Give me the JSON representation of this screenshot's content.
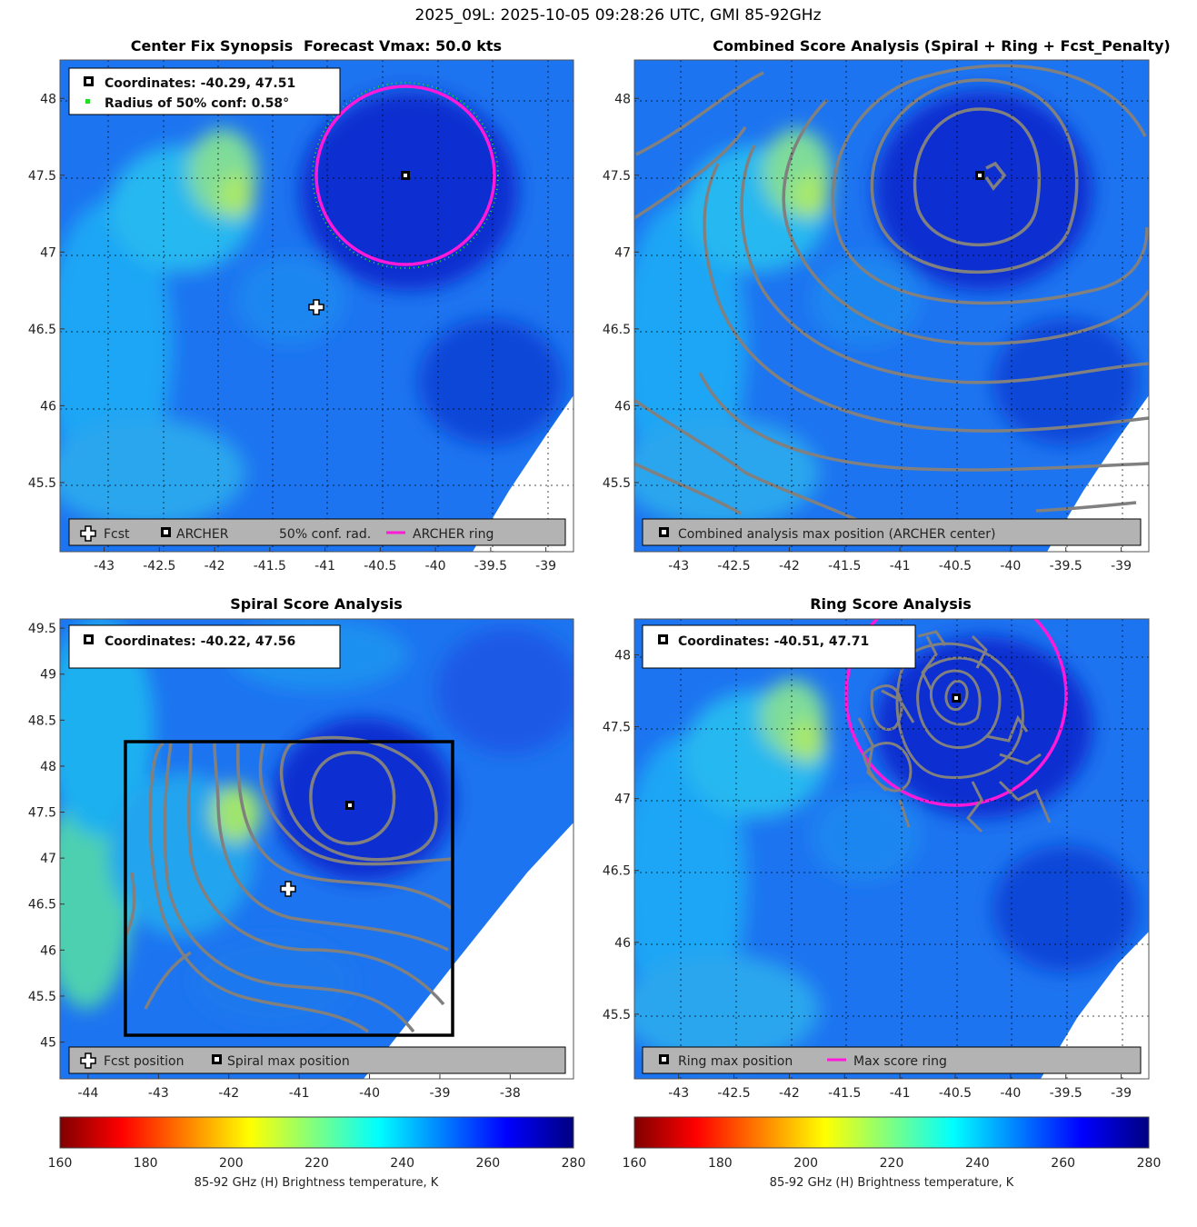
{
  "figure_title": "2025_09L: 2025-10-05 09:28:26 UTC, GMI 85-92GHz",
  "colors": {
    "archer_ring": "#ff19d9",
    "conf_dot": "#22dd22",
    "contour": "#808080",
    "box": "#000000",
    "legend_bg": "#b3b3b3"
  },
  "chart_data": [
    {
      "id": "center_fix",
      "type": "heatmap",
      "title_left": "Center Fix Synopsis",
      "title_right": "Forecast Vmax: 50.0 kts",
      "xlim": [
        -43.4,
        -38.75
      ],
      "ylim": [
        45.05,
        48.25
      ],
      "xticks": [
        "-43",
        "-42.5",
        "-42",
        "-41.5",
        "-41",
        "-40.5",
        "-40",
        "-39.5",
        "-39"
      ],
      "yticks": [
        "45.5",
        "46",
        "46.5",
        "47",
        "47.5",
        "48"
      ],
      "info": [
        "Coordinates: -40.29, 47.51",
        "Radius of 50% conf: 0.58°"
      ],
      "legend": [
        "Fcst",
        "ARCHER",
        "50% conf. rad.",
        "ARCHER ring"
      ],
      "archer_center": [
        -40.29,
        47.51
      ],
      "forecast_position": [
        -41.09,
        46.66
      ],
      "archer_ring_radius_deg": 0.58,
      "conf_radius_deg": 0.58
    },
    {
      "id": "combined",
      "type": "heatmap",
      "title": "Combined Score Analysis (Spiral + Ring + Fcst_Penalty)",
      "xlim": [
        -43.4,
        -38.75
      ],
      "ylim": [
        45.05,
        48.25
      ],
      "xticks": [
        "-43",
        "-42.5",
        "-42",
        "-41.5",
        "-41",
        "-40.5",
        "-40",
        "-39.5",
        "-39"
      ],
      "yticks": [
        "45.5",
        "46",
        "46.5",
        "47",
        "47.5",
        "48"
      ],
      "legend": [
        "Combined analysis max position (ARCHER center)"
      ],
      "max_position": [
        -40.29,
        47.51
      ]
    },
    {
      "id": "spiral",
      "type": "heatmap",
      "title": "Spiral Score Analysis",
      "xlim": [
        -44.4,
        -37.1
      ],
      "ylim": [
        44.6,
        49.6
      ],
      "xticks": [
        "-44",
        "-43",
        "-42",
        "-41",
        "-40",
        "-39",
        "-38"
      ],
      "yticks": [
        "45",
        "45.5",
        "46",
        "46.5",
        "47",
        "47.5",
        "48",
        "48.5",
        "49",
        "49.5"
      ],
      "info": [
        "Coordinates: -40.22, 47.56"
      ],
      "legend": [
        "Fcst position",
        "Spiral max position"
      ],
      "spiral_max": [
        -40.22,
        47.56
      ],
      "forecast_position": [
        -41.09,
        46.66
      ],
      "search_box": {
        "x": [
          -43.47,
          -38.76
        ],
        "y": [
          45.05,
          48.25
        ]
      }
    },
    {
      "id": "ring",
      "type": "heatmap",
      "title": "Ring Score Analysis",
      "xlim": [
        -43.4,
        -38.75
      ],
      "ylim": [
        45.05,
        48.25
      ],
      "xticks": [
        "-43",
        "-42.5",
        "-42",
        "-41.5",
        "-41",
        "-40.5",
        "-40",
        "-39.5",
        "-39"
      ],
      "yticks": [
        "45.5",
        "46",
        "46.5",
        "47",
        "47.5",
        "48"
      ],
      "info": [
        "Coordinates: -40.51, 47.71"
      ],
      "legend": [
        "Ring max position",
        "Max score ring"
      ],
      "ring_max": [
        -40.51,
        47.71
      ],
      "ring_radius_deg": 0.74
    }
  ],
  "colorbars": [
    {
      "ticks": [
        "160",
        "180",
        "200",
        "220",
        "240",
        "260",
        "280"
      ],
      "label": "85-92 GHz (H) Brightness temperature, K"
    },
    {
      "ticks": [
        "160",
        "180",
        "200",
        "220",
        "240",
        "260",
        "280"
      ],
      "label": "85-92 GHz (H) Brightness temperature, K"
    }
  ]
}
